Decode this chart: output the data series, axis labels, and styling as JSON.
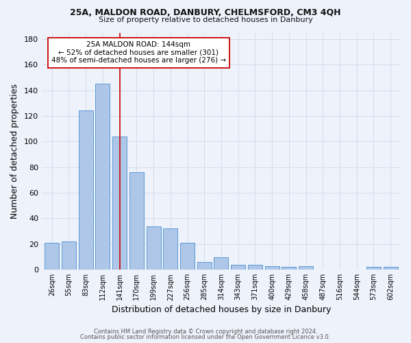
{
  "title1": "25A, MALDON ROAD, DANBURY, CHELMSFORD, CM3 4QH",
  "title2": "Size of property relative to detached houses in Danbury",
  "xlabel": "Distribution of detached houses by size in Danbury",
  "ylabel": "Number of detached properties",
  "categories": [
    "26sqm",
    "55sqm",
    "83sqm",
    "112sqm",
    "141sqm",
    "170sqm",
    "199sqm",
    "227sqm",
    "256sqm",
    "285sqm",
    "314sqm",
    "343sqm",
    "371sqm",
    "400sqm",
    "429sqm",
    "458sqm",
    "487sqm",
    "516sqm",
    "544sqm",
    "573sqm",
    "602sqm"
  ],
  "values": [
    21,
    22,
    124,
    145,
    104,
    76,
    34,
    32,
    21,
    6,
    10,
    4,
    4,
    3,
    2,
    3,
    0,
    0,
    0,
    2,
    2
  ],
  "bar_color": "#aec6e8",
  "bar_edge_color": "#5b9bd5",
  "grid_color": "#d0d8e8",
  "bg_color": "#eef2fb",
  "vline_x": 4,
  "vline_color": "#cc0000",
  "annotation_line1": "25A MALDON ROAD: 144sqm",
  "annotation_line2": "← 52% of detached houses are smaller (301)",
  "annotation_line3": "48% of semi-detached houses are larger (276) →",
  "annotation_box_color": "#ffffff",
  "annotation_box_edge": "#cc0000",
  "footer1": "Contains HM Land Registry data © Crown copyright and database right 2024.",
  "footer2": "Contains public sector information licensed under the Open Government Licence v3.0.",
  "ylim": [
    0,
    185
  ],
  "yticks": [
    0,
    20,
    40,
    60,
    80,
    100,
    120,
    140,
    160,
    180
  ]
}
